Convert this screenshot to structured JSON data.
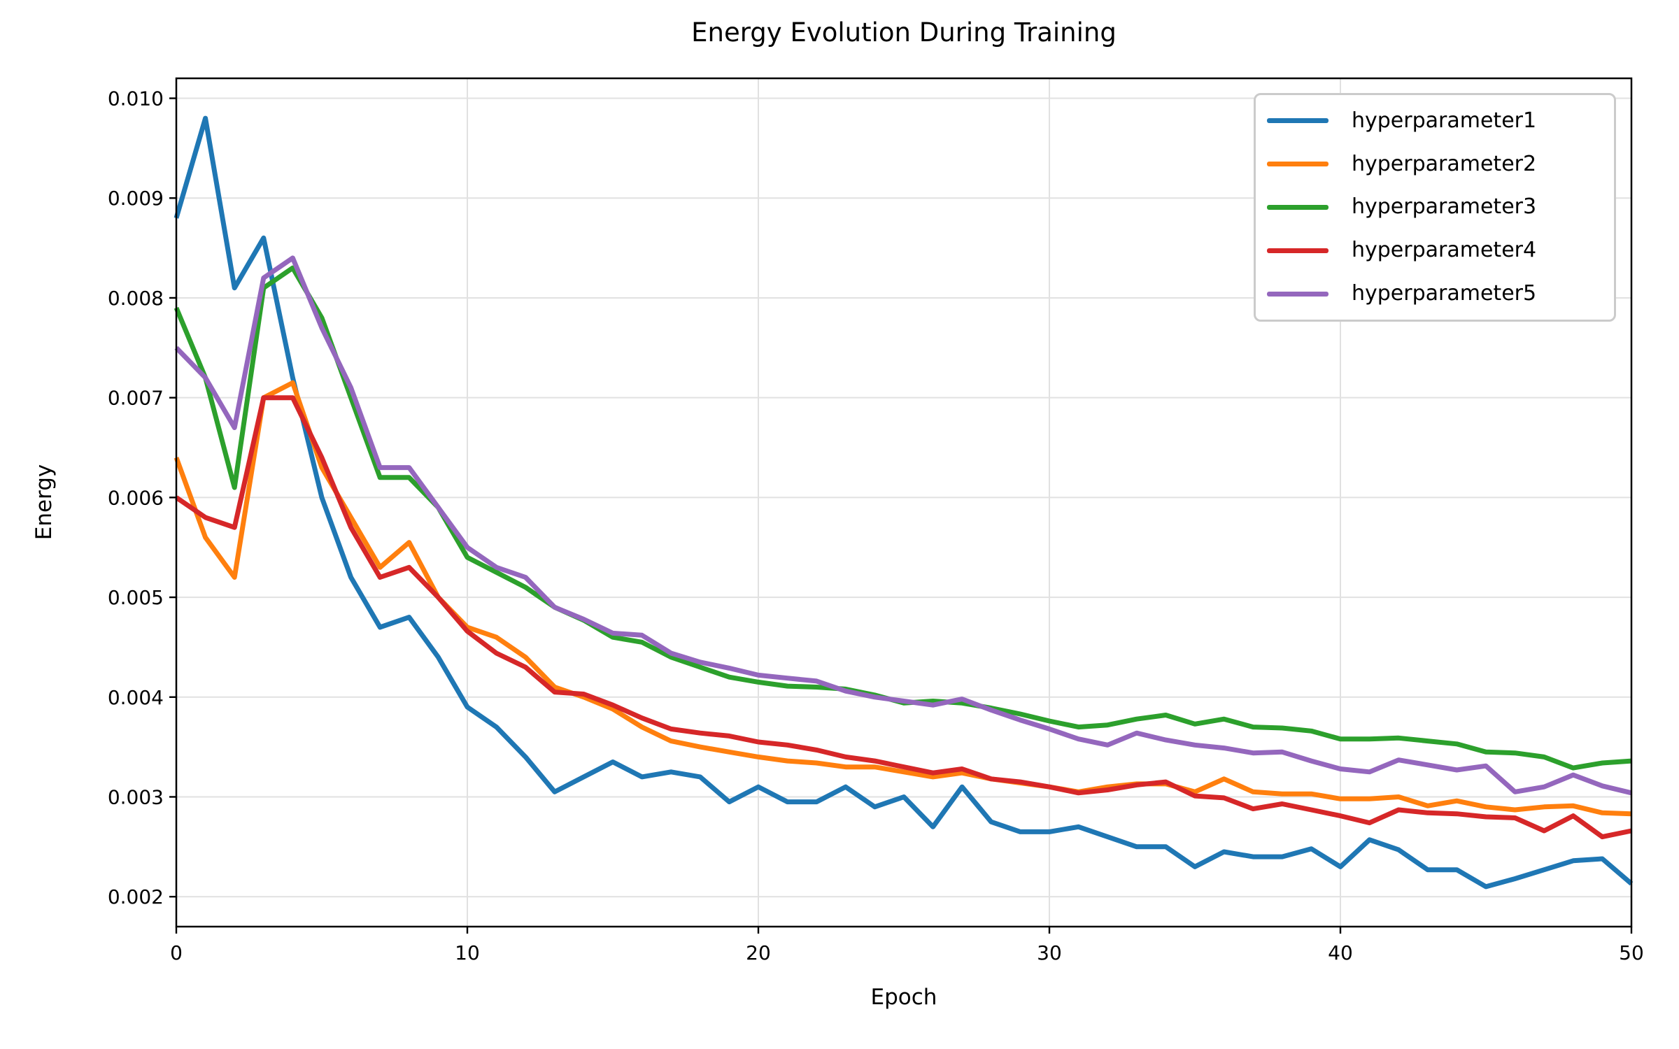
{
  "chart_data": {
    "type": "line",
    "title": "Energy Evolution During Training",
    "xlabel": "Epoch",
    "ylabel": "Energy",
    "xlim": [
      0,
      50
    ],
    "ylim": [
      0.0017,
      0.0102
    ],
    "x_ticks": [
      0,
      10,
      20,
      30,
      40,
      50
    ],
    "y_ticks": [
      0.002,
      0.003,
      0.004,
      0.005,
      0.006,
      0.007,
      0.008,
      0.009,
      0.01
    ],
    "grid": true,
    "legend_position": "upper right",
    "x": [
      0,
      1,
      2,
      3,
      4,
      5,
      6,
      7,
      8,
      9,
      10,
      11,
      12,
      13,
      14,
      15,
      16,
      17,
      18,
      19,
      20,
      21,
      22,
      23,
      24,
      25,
      26,
      27,
      28,
      29,
      30,
      31,
      32,
      33,
      34,
      35,
      36,
      37,
      38,
      39,
      40,
      41,
      42,
      43,
      44,
      45,
      46,
      47,
      48,
      49,
      50
    ],
    "series": [
      {
        "name": "hyperparameter1",
        "color": "#1f77b4",
        "values": [
          0.0088,
          0.0098,
          0.0081,
          0.0086,
          0.0072,
          0.006,
          0.0052,
          0.0047,
          0.0048,
          0.0044,
          0.0039,
          0.0037,
          0.0034,
          0.00305,
          0.0032,
          0.00335,
          0.0032,
          0.00325,
          0.0032,
          0.00295,
          0.0031,
          0.00295,
          0.00295,
          0.0031,
          0.0029,
          0.003,
          0.0027,
          0.0031,
          0.00275,
          0.00265,
          0.00265,
          0.0027,
          0.0026,
          0.0025,
          0.0025,
          0.0023,
          0.00245,
          0.0024,
          0.0024,
          0.00248,
          0.0023,
          0.00257,
          0.00247,
          0.00227,
          0.00227,
          0.0021,
          0.00218,
          0.00227,
          0.00236,
          0.00238,
          0.00213
        ]
      },
      {
        "name": "hyperparameter2",
        "color": "#ff7f0e",
        "values": [
          0.0064,
          0.0056,
          0.0052,
          0.007,
          0.00715,
          0.0063,
          0.0058,
          0.0053,
          0.00555,
          0.005,
          0.0047,
          0.0046,
          0.0044,
          0.0041,
          0.004,
          0.00388,
          0.0037,
          0.00356,
          0.0035,
          0.00345,
          0.0034,
          0.00336,
          0.00334,
          0.0033,
          0.0033,
          0.00325,
          0.0032,
          0.00324,
          0.00318,
          0.00314,
          0.0031,
          0.00305,
          0.0031,
          0.00313,
          0.00313,
          0.00305,
          0.00318,
          0.00305,
          0.00303,
          0.00303,
          0.00298,
          0.00298,
          0.003,
          0.00291,
          0.00296,
          0.0029,
          0.00287,
          0.0029,
          0.00291,
          0.00284,
          0.00283
        ]
      },
      {
        "name": "hyperparameter3",
        "color": "#2ca02c",
        "values": [
          0.0079,
          0.0072,
          0.0061,
          0.0081,
          0.0083,
          0.0078,
          0.007,
          0.0062,
          0.0062,
          0.0059,
          0.0054,
          0.00525,
          0.0051,
          0.0049,
          0.00477,
          0.0046,
          0.00455,
          0.0044,
          0.0043,
          0.0042,
          0.00415,
          0.00411,
          0.0041,
          0.00408,
          0.00402,
          0.00394,
          0.00396,
          0.00394,
          0.00389,
          0.00383,
          0.00376,
          0.0037,
          0.00372,
          0.00378,
          0.00382,
          0.00373,
          0.00378,
          0.0037,
          0.00369,
          0.00366,
          0.00358,
          0.00358,
          0.00359,
          0.00356,
          0.00353,
          0.00345,
          0.00344,
          0.0034,
          0.00329,
          0.00334,
          0.00336
        ]
      },
      {
        "name": "hyperparameter4",
        "color": "#d62728",
        "values": [
          0.006,
          0.0058,
          0.0057,
          0.007,
          0.007,
          0.0064,
          0.0057,
          0.0052,
          0.0053,
          0.005,
          0.00466,
          0.00444,
          0.0043,
          0.00405,
          0.00403,
          0.00392,
          0.00379,
          0.00368,
          0.00364,
          0.00361,
          0.00355,
          0.00352,
          0.00347,
          0.0034,
          0.00336,
          0.0033,
          0.00324,
          0.00328,
          0.00318,
          0.00315,
          0.0031,
          0.00304,
          0.00307,
          0.00312,
          0.00315,
          0.00301,
          0.00299,
          0.00288,
          0.00293,
          0.00287,
          0.00281,
          0.00274,
          0.00287,
          0.00284,
          0.00283,
          0.0028,
          0.00279,
          0.00266,
          0.00281,
          0.0026,
          0.00266
        ]
      },
      {
        "name": "hyperparameter5",
        "color": "#9467bd",
        "values": [
          0.0075,
          0.0072,
          0.0067,
          0.0082,
          0.0084,
          0.0077,
          0.0071,
          0.0063,
          0.0063,
          0.0059,
          0.0055,
          0.0053,
          0.0052,
          0.0049,
          0.00478,
          0.00464,
          0.00462,
          0.00444,
          0.00435,
          0.00429,
          0.00422,
          0.00419,
          0.00416,
          0.00406,
          0.004,
          0.00396,
          0.00392,
          0.00398,
          0.00387,
          0.00377,
          0.00368,
          0.00358,
          0.00352,
          0.00364,
          0.00357,
          0.00352,
          0.00349,
          0.00344,
          0.00345,
          0.00336,
          0.00328,
          0.00325,
          0.00337,
          0.00332,
          0.00327,
          0.00331,
          0.00305,
          0.0031,
          0.00322,
          0.00311,
          0.00304
        ]
      }
    ],
    "style": {
      "grid_color": "#e1e1e1",
      "spine_color": "#000000",
      "background": "#ffffff",
      "line_width": 7,
      "legend_border_color": "#cbcbcb"
    }
  }
}
